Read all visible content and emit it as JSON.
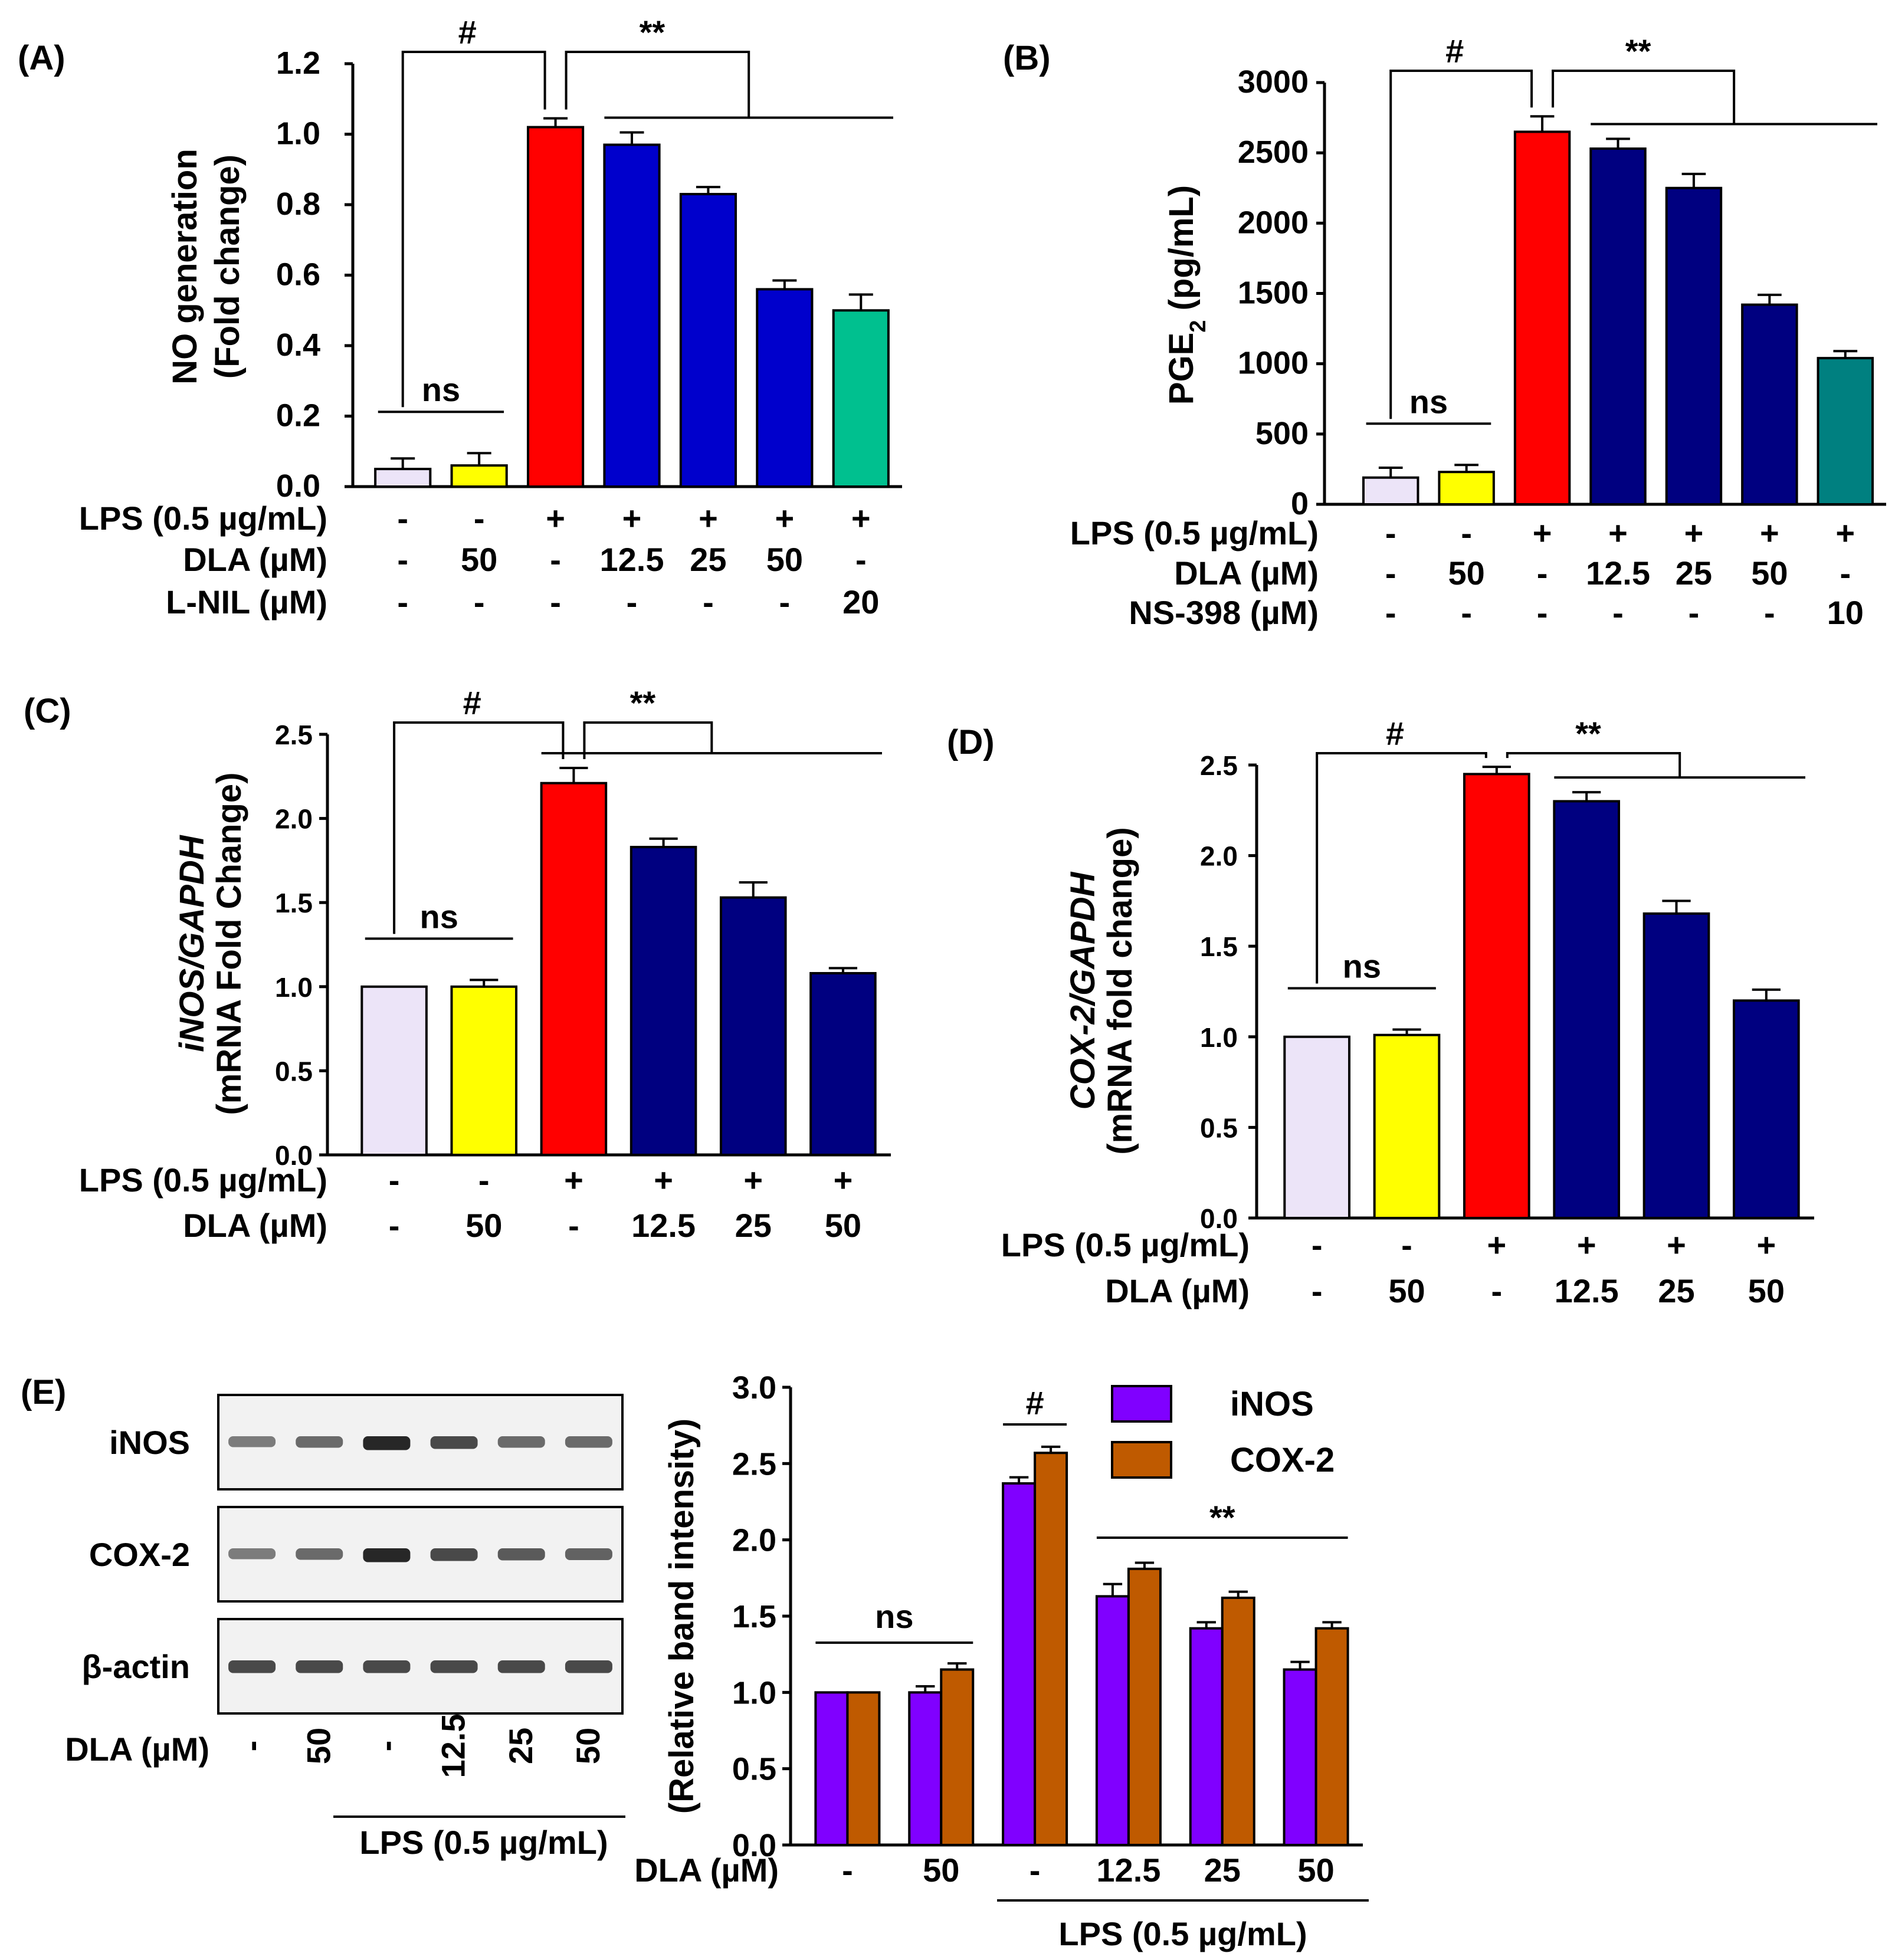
{
  "figure": {
    "panels": [
      {
        "id": "A",
        "label": "(A)",
        "sig": {
          "hash": "#",
          "stars": "**",
          "ns": "ns"
        },
        "rows": [
          {
            "label": "LPS (0.5 µg/mL)",
            "values": [
              "-",
              "-",
              "+",
              "+",
              "+",
              "+",
              "+"
            ]
          },
          {
            "label": "DLA (µM)",
            "values": [
              "-",
              "50",
              "-",
              "12.5",
              "25",
              "50",
              "-"
            ]
          },
          {
            "label": "L-NIL (µM)",
            "values": [
              "-",
              "-",
              "-",
              "-",
              "-",
              "-",
              "20"
            ]
          }
        ]
      },
      {
        "id": "B",
        "label": "(B)",
        "sig": {
          "hash": "#",
          "stars": "**",
          "ns": "ns"
        },
        "rows": [
          {
            "label": "LPS (0.5 µg/mL)",
            "values": [
              "-",
              "-",
              "+",
              "+",
              "+",
              "+",
              "+"
            ]
          },
          {
            "label": "DLA (µM)",
            "values": [
              "-",
              "50",
              "-",
              "12.5",
              "25",
              "50",
              "-"
            ]
          },
          {
            "label": "NS-398 (µM)",
            "values": [
              "-",
              "-",
              "-",
              "-",
              "-",
              "-",
              "10"
            ]
          }
        ]
      },
      {
        "id": "C",
        "label": "(C)",
        "sig": {
          "hash": "#",
          "stars": "**",
          "ns": "ns"
        },
        "rows": [
          {
            "label": "LPS (0.5 µg/mL)",
            "values": [
              "-",
              "-",
              "+",
              "+",
              "+",
              "+"
            ]
          },
          {
            "label": "DLA (µM)",
            "values": [
              "-",
              "50",
              "-",
              "12.5",
              "25",
              "50"
            ]
          }
        ]
      },
      {
        "id": "D",
        "label": "(D)",
        "sig": {
          "hash": "#",
          "stars": "**",
          "ns": "ns"
        },
        "rows": [
          {
            "label": "LPS (0.5 µg/mL)",
            "values": [
              "-",
              "-",
              "+",
              "+",
              "+",
              "+"
            ]
          },
          {
            "label": "DLA (µM)",
            "values": [
              "-",
              "50",
              "-",
              "12.5",
              "25",
              "50"
            ]
          }
        ]
      },
      {
        "id": "E",
        "label": "(E)",
        "sig": {
          "hash": "#",
          "stars": "**",
          "ns": "ns"
        },
        "rows": [
          {
            "label": "DLA (µM)",
            "values": [
              "-",
              "50",
              "-",
              "12.5",
              "25",
              "50"
            ]
          }
        ],
        "group_label": "LPS (0.5 µg/mL)"
      }
    ],
    "western_blot": {
      "bands": [
        "iNOS",
        "COX-2",
        "β-actin"
      ],
      "intensity": [
        [
          0.45,
          0.55,
          0.95,
          0.75,
          0.55,
          0.55
        ],
        [
          0.45,
          0.55,
          0.95,
          0.75,
          0.65,
          0.6
        ],
        [
          0.75,
          0.75,
          0.75,
          0.75,
          0.75,
          0.75
        ]
      ],
      "lane_label": "DLA (µM)",
      "lanes": [
        "-",
        "50",
        "-",
        "12.5",
        "25",
        "50"
      ],
      "group_label": "LPS (0.5 µg/mL)"
    }
  },
  "chart_data": [
    {
      "panel": "A",
      "type": "bar",
      "ylabel_lines": [
        "NO generation",
        "(Fold change)"
      ],
      "ylim": [
        0,
        1.2
      ],
      "yticks": [
        "0.0",
        "0.2",
        "0.4",
        "0.6",
        "0.8",
        "1.0",
        "1.2"
      ],
      "values": [
        0.05,
        0.06,
        1.02,
        0.97,
        0.83,
        0.56,
        0.5
      ],
      "errors": [
        0.03,
        0.035,
        0.025,
        0.035,
        0.02,
        0.025,
        0.045
      ],
      "colors": [
        "#ece4f8",
        "#ffff00",
        "#ff0000",
        "#0000cc",
        "#0000cc",
        "#0000cc",
        "#00c08f"
      ]
    },
    {
      "panel": "B",
      "type": "bar",
      "ylabel": "PGE2 (pg/mL)",
      "ylim": [
        0,
        3000
      ],
      "yticks": [
        "0",
        "500",
        "1000",
        "1500",
        "2000",
        "2500",
        "3000"
      ],
      "values": [
        190,
        230,
        2650,
        2530,
        2250,
        1420,
        1040
      ],
      "errors": [
        70,
        50,
        110,
        70,
        100,
        70,
        50
      ],
      "colors": [
        "#ece4f8",
        "#ffff00",
        "#ff0000",
        "#000080",
        "#000080",
        "#000080",
        "#008080"
      ]
    },
    {
      "panel": "C",
      "type": "bar",
      "ylabel_lines": [
        "iNOS/GAPDH",
        "(mRNA Fold Change)"
      ],
      "ylim": [
        0,
        2.5
      ],
      "yticks": [
        "0.0",
        "0.5",
        "1.0",
        "1.5",
        "2.0",
        "2.5"
      ],
      "values": [
        1.0,
        1.0,
        2.21,
        1.83,
        1.53,
        1.08
      ],
      "errors": [
        0,
        0.04,
        0.09,
        0.05,
        0.09,
        0.03
      ],
      "colors": [
        "#ece4f8",
        "#ffff00",
        "#ff0000",
        "#000080",
        "#000080",
        "#000080"
      ]
    },
    {
      "panel": "D",
      "type": "bar",
      "ylabel_lines": [
        "COX-2/GAPDH",
        "(mRNA fold change)"
      ],
      "ylim": [
        0,
        2.5
      ],
      "yticks": [
        "0.0",
        "0.5",
        "1.0",
        "1.5",
        "2.0",
        "2.5"
      ],
      "values": [
        1.0,
        1.01,
        2.45,
        2.3,
        1.68,
        1.2
      ],
      "errors": [
        0,
        0.03,
        0.04,
        0.05,
        0.07,
        0.06
      ],
      "colors": [
        "#ece4f8",
        "#ffff00",
        "#ff0000",
        "#000080",
        "#000080",
        "#000080"
      ]
    },
    {
      "panel": "E",
      "type": "bar",
      "ylabel": "(Relative band intensity)",
      "ylim": [
        0,
        3.0
      ],
      "yticks": [
        "0.0",
        "0.5",
        "1.0",
        "1.5",
        "2.0",
        "2.5",
        "3.0"
      ],
      "series": [
        {
          "name": "iNOS",
          "color": "#8000ff",
          "values": [
            1.0,
            1.0,
            2.37,
            1.63,
            1.42,
            1.15
          ],
          "errors": [
            0,
            0.04,
            0.04,
            0.08,
            0.04,
            0.05
          ]
        },
        {
          "name": "COX-2",
          "color": "#bf5a00",
          "values": [
            1.0,
            1.15,
            2.57,
            1.81,
            1.62,
            1.42
          ],
          "errors": [
            0,
            0.04,
            0.04,
            0.04,
            0.04,
            0.04
          ]
        }
      ],
      "legend": "top-right"
    }
  ]
}
